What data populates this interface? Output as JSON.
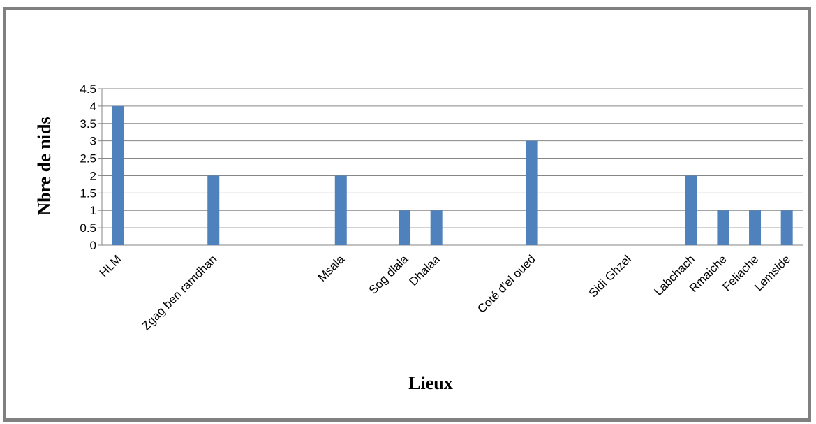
{
  "chart_data": {
    "type": "bar",
    "title": "",
    "xlabel": "Lieux",
    "ylabel": "Nbre de nids",
    "categories": [
      "HLM",
      "",
      "",
      "Zgag ben ramdhan",
      "",
      "",
      "",
      "Msala",
      "",
      "Sog dlala",
      "Dhalaa",
      "",
      "",
      "Coté d'el oued",
      "",
      "",
      "Sidi Ghzel",
      "",
      "Labchach",
      "Rmaiche",
      "Feliache",
      "Lemside"
    ],
    "values": [
      4,
      0,
      0,
      2,
      0,
      0,
      0,
      2,
      0,
      1,
      1,
      0,
      0,
      3,
      0,
      0,
      0,
      0,
      2,
      1,
      1,
      1
    ],
    "ylim": [
      0,
      4.5
    ],
    "yticks": [
      "0",
      "0.5",
      "1",
      "1.5",
      "2",
      "2.5",
      "3",
      "3.5",
      "4",
      "4.5"
    ],
    "grid": true,
    "legend": "none",
    "bar_color": "#4F81BD",
    "grid_color": "#868686"
  }
}
